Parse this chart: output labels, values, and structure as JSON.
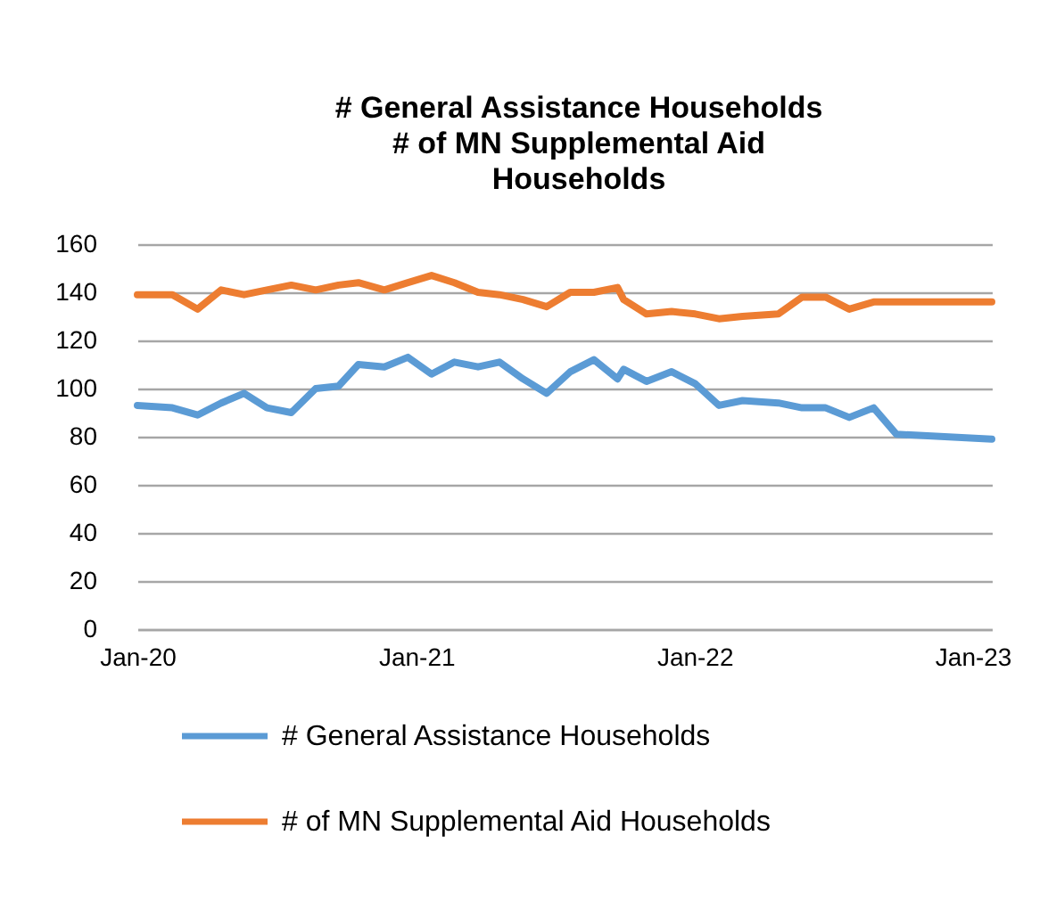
{
  "chart_data": {
    "type": "line",
    "title": "# General Assistance Households\n# of MN Supplemental Aid\nHouseholds",
    "x": [
      "2020-01-01",
      "2020-02-16",
      "2020-03-20",
      "2020-04-20",
      "2020-05-20",
      "2020-06-19",
      "2020-07-21",
      "2020-08-22",
      "2020-09-21",
      "2020-10-17",
      "2020-11-20",
      "2020-12-21",
      "2021-01-21",
      "2021-02-20",
      "2021-03-23",
      "2021-04-20",
      "2021-05-21",
      "2021-06-21",
      "2021-07-22",
      "2021-08-22",
      "2021-09-22",
      "2021-09-30",
      "2021-10-30",
      "2021-12-02",
      "2022-01-02",
      "2022-02-02",
      "2022-03-05",
      "2022-04-21",
      "2022-05-22",
      "2022-06-22",
      "2022-07-23",
      "2022-08-24",
      "2022-09-23",
      "2023-01-26"
    ],
    "series": [
      {
        "name": "# General Assistance Households",
        "color": "#5b9bd5",
        "values": [
          93,
          92,
          89,
          94,
          98,
          92,
          90,
          100,
          101,
          110,
          109,
          113,
          106,
          111,
          109,
          111,
          104,
          98,
          107,
          112,
          104,
          108,
          103,
          107,
          102,
          93,
          95,
          94,
          92,
          92,
          88,
          92,
          81,
          79
        ]
      },
      {
        "name": "# of MN Supplemental Aid Households",
        "color": "#ed7d31",
        "values": [
          139,
          139,
          133,
          141,
          139,
          141,
          143,
          141,
          143,
          144,
          141,
          144,
          147,
          144,
          140,
          139,
          137,
          134,
          140,
          140,
          142,
          137,
          131,
          132,
          131,
          129,
          130,
          131,
          138,
          138,
          133,
          136,
          136,
          136
        ]
      }
    ],
    "xlim": [
      "2020-01-01",
      "2023-01-26"
    ],
    "xticks": [
      {
        "value": "2020-01-01",
        "label": "Jan-20"
      },
      {
        "value": "2021-01-01",
        "label": "Jan-21"
      },
      {
        "value": "2022-01-01",
        "label": "Jan-22"
      },
      {
        "value": "2023-01-01",
        "label": "Jan-23"
      }
    ],
    "ylim": [
      0,
      160
    ],
    "yticks": [
      0,
      20,
      40,
      60,
      80,
      100,
      120,
      140,
      160
    ],
    "grid": "y",
    "legend": "bottom",
    "line_style": "solid"
  }
}
